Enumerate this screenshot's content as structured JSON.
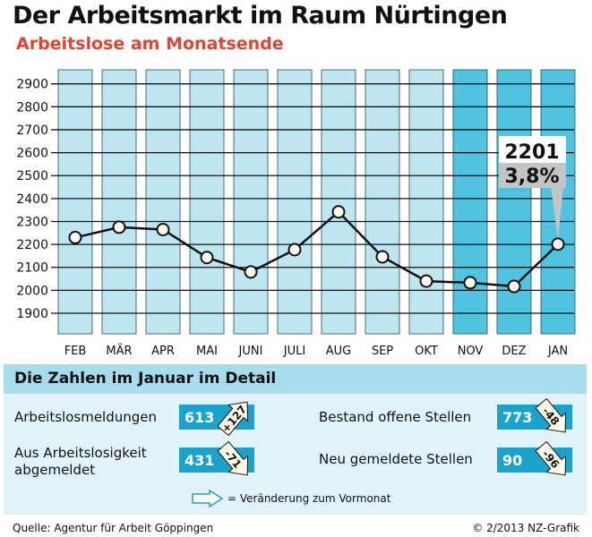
{
  "header": {
    "title": "Der Arbeitsmarkt im Raum Nürtingen",
    "subtitle": "Arbeitslose am Monatsende"
  },
  "chart_data": {
    "type": "line",
    "categories": [
      "FEB",
      "MÄR",
      "APR",
      "MAI",
      "JUNI",
      "JULI",
      "AUG",
      "SEP",
      "OKT",
      "NOV",
      "DEZ",
      "JAN"
    ],
    "values": [
      2230,
      2275,
      2265,
      2143,
      2080,
      2177,
      2342,
      2146,
      2040,
      2033,
      2017,
      2201
    ],
    "highlighted_categories": [
      "NOV",
      "DEZ",
      "JAN"
    ],
    "yticks": [
      1900,
      2000,
      2100,
      2200,
      2300,
      2400,
      2500,
      2600,
      2700,
      2800,
      2900
    ],
    "ylim": [
      1820,
      2960
    ],
    "grid": true,
    "annotation": {
      "category": "JAN",
      "value_label": "2201",
      "rate_label": "3,8%"
    },
    "colors": {
      "column": "#bde6f0",
      "column_highlight": "#4fc3e0",
      "line": "#111111",
      "point": "#fdfaf0",
      "label_bg": "#ffffff",
      "label_rate_bg": "#c4c4c4"
    }
  },
  "detail": {
    "heading": "Die Zahlen im Januar im Detail",
    "items": [
      {
        "label": "Arbeitslosmeldungen",
        "value": "613",
        "change": "+127",
        "direction": "up"
      },
      {
        "label": "Aus Arbeitslosigkeit abgemeldet",
        "value": "431",
        "change": "-71",
        "direction": "down"
      },
      {
        "label": "Bestand offene Stellen",
        "value": "773",
        "change": "-48",
        "direction": "down"
      },
      {
        "label": "Neu gemeldete Stellen",
        "value": "90",
        "change": "-96",
        "direction": "down"
      }
    ],
    "legend": "= Veränderung zum Vormonat",
    "colors": {
      "panel": "#e1f3f8",
      "header": "#a6dceb",
      "badge": "#1aa3cc"
    }
  },
  "footer": {
    "source": "Quelle: Agentur für Arbeit Göppingen",
    "copyright": "© 2/2013 NZ-Grafik"
  }
}
